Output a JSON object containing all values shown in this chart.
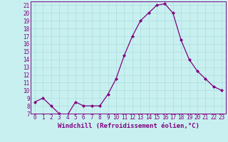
{
  "x": [
    0,
    1,
    2,
    3,
    4,
    5,
    6,
    7,
    8,
    9,
    10,
    11,
    12,
    13,
    14,
    15,
    16,
    17,
    18,
    19,
    20,
    21,
    22,
    23
  ],
  "y": [
    8.5,
    9.0,
    8.0,
    7.0,
    6.8,
    8.5,
    8.0,
    8.0,
    8.0,
    9.5,
    11.5,
    14.5,
    17.0,
    19.0,
    20.0,
    21.0,
    21.2,
    20.0,
    16.5,
    14.0,
    12.5,
    11.5,
    10.5,
    10.0
  ],
  "line_color": "#800080",
  "marker": "D",
  "markersize": 2.0,
  "linewidth": 0.9,
  "bg_color": "#c8f0f0",
  "grid_color": "#a8d8d8",
  "axis_color": "#800080",
  "xlabel": "Windchill (Refroidissement éolien,°C)",
  "xlabel_fontsize": 6.5,
  "tick_fontsize": 5.5,
  "ylim": [
    7,
    21.5
  ],
  "xlim": [
    -0.5,
    23.5
  ],
  "yticks": [
    7,
    8,
    9,
    10,
    11,
    12,
    13,
    14,
    15,
    16,
    17,
    18,
    19,
    20,
    21
  ],
  "xticks": [
    0,
    1,
    2,
    3,
    4,
    5,
    6,
    7,
    8,
    9,
    10,
    11,
    12,
    13,
    14,
    15,
    16,
    17,
    18,
    19,
    20,
    21,
    22,
    23
  ]
}
